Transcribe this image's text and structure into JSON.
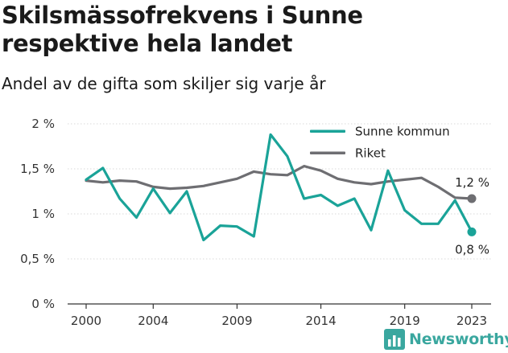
{
  "header": {
    "title": "Skilsmässofrekvens i Sunne respektive hela landet",
    "subtitle": "Andel av de gifta som skiljer sig varje år"
  },
  "brand": {
    "name": "Newsworthy",
    "icon": "bar-chart-logo-icon",
    "color": "#3aa79f"
  },
  "chart_data": {
    "type": "line",
    "title": "Skilsmässofrekvens i Sunne respektive hela landet",
    "subtitle": "Andel av de gifta som skiljer sig varje år",
    "xlabel": "",
    "ylabel": "",
    "x": [
      2000,
      2001,
      2002,
      2003,
      2004,
      2005,
      2006,
      2007,
      2008,
      2009,
      2010,
      2011,
      2012,
      2013,
      2014,
      2015,
      2016,
      2017,
      2018,
      2019,
      2020,
      2021,
      2022,
      2023
    ],
    "xticks": [
      2000,
      2004,
      2009,
      2014,
      2019,
      2023
    ],
    "yticks": [
      0,
      0.5,
      1,
      1.5,
      2
    ],
    "ytick_labels": [
      "0 %",
      "0,5 %",
      "1 %",
      "1,5 %",
      "2 %"
    ],
    "xlim": [
      2000,
      2023
    ],
    "ylim": [
      0,
      2
    ],
    "grid": "horizontal",
    "legend_position": "top-right",
    "series": [
      {
        "name": "Sunne kommun",
        "color": "#1aa398",
        "values": [
          1.38,
          1.51,
          1.17,
          0.96,
          1.28,
          1.01,
          1.25,
          0.71,
          0.87,
          0.86,
          0.75,
          1.88,
          1.64,
          1.17,
          1.21,
          1.09,
          1.17,
          0.82,
          1.48,
          1.04,
          0.89,
          0.89,
          1.15,
          0.8
        ],
        "end_label": "0,8 %"
      },
      {
        "name": "Riket",
        "color": "#6e6e72",
        "values": [
          1.37,
          1.35,
          1.37,
          1.36,
          1.3,
          1.28,
          1.29,
          1.31,
          1.35,
          1.39,
          1.47,
          1.44,
          1.43,
          1.53,
          1.48,
          1.39,
          1.35,
          1.33,
          1.36,
          1.38,
          1.4,
          1.3,
          1.18,
          1.17
        ],
        "end_label": "1,2 %"
      }
    ]
  }
}
